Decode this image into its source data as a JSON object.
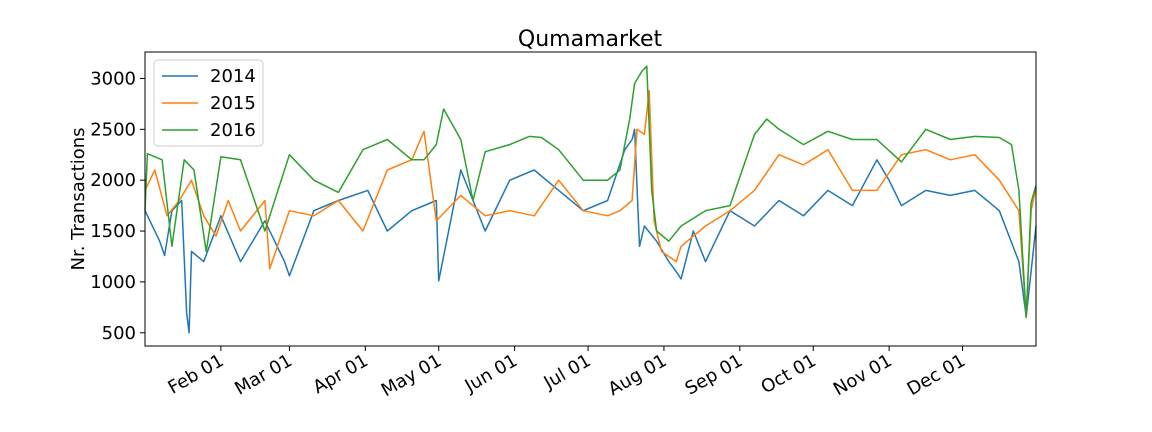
{
  "chart_data": {
    "type": "line",
    "title": "Qumamarket",
    "ylabel": "Nr. Transactions",
    "xlabel": "",
    "x_ticks": [
      {
        "label": "Feb 01",
        "day": 32
      },
      {
        "label": "Mar 01",
        "day": 60
      },
      {
        "label": "Apr 01",
        "day": 91
      },
      {
        "label": "May 01",
        "day": 121
      },
      {
        "label": "Jun 01",
        "day": 152
      },
      {
        "label": "Jul 01",
        "day": 182
      },
      {
        "label": "Aug 01",
        "day": 213
      },
      {
        "label": "Sep 01",
        "day": 244
      },
      {
        "label": "Oct 01",
        "day": 274
      },
      {
        "label": "Nov 01",
        "day": 305
      },
      {
        "label": "Dec 01",
        "day": 335
      }
    ],
    "xlim": [
      1,
      365
    ],
    "y_ticks": [
      500,
      1000,
      1500,
      2000,
      2500,
      3000
    ],
    "ylim": [
      370,
      3260
    ],
    "legend": "top-left",
    "series": [
      {
        "name": "2014",
        "color": "#1f77b4",
        "points": [
          [
            1,
            1700
          ],
          [
            7,
            1400
          ],
          [
            9,
            1260
          ],
          [
            12,
            1700
          ],
          [
            16,
            1800
          ],
          [
            18,
            700
          ],
          [
            19,
            500
          ],
          [
            20,
            1300
          ],
          [
            25,
            1200
          ],
          [
            32,
            1650
          ],
          [
            40,
            1200
          ],
          [
            50,
            1600
          ],
          [
            58,
            1200
          ],
          [
            60,
            1060
          ],
          [
            70,
            1700
          ],
          [
            80,
            1800
          ],
          [
            92,
            1900
          ],
          [
            100,
            1500
          ],
          [
            110,
            1700
          ],
          [
            120,
            1800
          ],
          [
            121,
            1010
          ],
          [
            130,
            2100
          ],
          [
            140,
            1500
          ],
          [
            150,
            2000
          ],
          [
            160,
            2100
          ],
          [
            170,
            1900
          ],
          [
            180,
            1700
          ],
          [
            190,
            1800
          ],
          [
            197,
            2300
          ],
          [
            200,
            2400
          ],
          [
            201,
            2500
          ],
          [
            203,
            1350
          ],
          [
            205,
            1550
          ],
          [
            210,
            1400
          ],
          [
            215,
            1200
          ],
          [
            218,
            1100
          ],
          [
            220,
            1030
          ],
          [
            225,
            1500
          ],
          [
            230,
            1200
          ],
          [
            240,
            1700
          ],
          [
            250,
            1550
          ],
          [
            260,
            1800
          ],
          [
            270,
            1650
          ],
          [
            280,
            1900
          ],
          [
            290,
            1750
          ],
          [
            300,
            2200
          ],
          [
            305,
            2000
          ],
          [
            310,
            1750
          ],
          [
            320,
            1900
          ],
          [
            330,
            1850
          ],
          [
            340,
            1900
          ],
          [
            350,
            1700
          ],
          [
            358,
            1200
          ],
          [
            361,
            660
          ],
          [
            365,
            1550
          ]
        ]
      },
      {
        "name": "2015",
        "color": "#ff7f0e",
        "points": [
          [
            1,
            1900
          ],
          [
            5,
            2100
          ],
          [
            10,
            1650
          ],
          [
            15,
            1800
          ],
          [
            20,
            2000
          ],
          [
            25,
            1650
          ],
          [
            30,
            1450
          ],
          [
            35,
            1800
          ],
          [
            40,
            1500
          ],
          [
            50,
            1800
          ],
          [
            52,
            1130
          ],
          [
            60,
            1700
          ],
          [
            70,
            1650
          ],
          [
            80,
            1800
          ],
          [
            90,
            1500
          ],
          [
            100,
            2100
          ],
          [
            110,
            2200
          ],
          [
            115,
            2480
          ],
          [
            120,
            1600
          ],
          [
            130,
            1850
          ],
          [
            140,
            1650
          ],
          [
            150,
            1700
          ],
          [
            160,
            1650
          ],
          [
            170,
            2000
          ],
          [
            180,
            1700
          ],
          [
            190,
            1650
          ],
          [
            195,
            1700
          ],
          [
            200,
            1800
          ],
          [
            202,
            2500
          ],
          [
            205,
            2450
          ],
          [
            207,
            2880
          ],
          [
            209,
            1600
          ],
          [
            212,
            1300
          ],
          [
            218,
            1200
          ],
          [
            220,
            1350
          ],
          [
            230,
            1550
          ],
          [
            240,
            1700
          ],
          [
            250,
            1900
          ],
          [
            260,
            2250
          ],
          [
            270,
            2150
          ],
          [
            280,
            2300
          ],
          [
            290,
            1900
          ],
          [
            300,
            1900
          ],
          [
            310,
            2250
          ],
          [
            320,
            2300
          ],
          [
            330,
            2200
          ],
          [
            340,
            2250
          ],
          [
            350,
            2000
          ],
          [
            358,
            1700
          ],
          [
            361,
            650
          ],
          [
            363,
            1700
          ],
          [
            365,
            1930
          ]
        ]
      },
      {
        "name": "2016",
        "color": "#2ca02c",
        "points": [
          [
            1,
            1700
          ],
          [
            2,
            2260
          ],
          [
            8,
            2200
          ],
          [
            12,
            1350
          ],
          [
            17,
            2200
          ],
          [
            21,
            2100
          ],
          [
            26,
            1300
          ],
          [
            32,
            2230
          ],
          [
            40,
            2200
          ],
          [
            50,
            1500
          ],
          [
            60,
            2250
          ],
          [
            70,
            2000
          ],
          [
            80,
            1880
          ],
          [
            90,
            2300
          ],
          [
            100,
            2400
          ],
          [
            110,
            2200
          ],
          [
            115,
            2200
          ],
          [
            120,
            2350
          ],
          [
            123,
            2700
          ],
          [
            130,
            2400
          ],
          [
            135,
            1800
          ],
          [
            140,
            2280
          ],
          [
            150,
            2350
          ],
          [
            158,
            2430
          ],
          [
            163,
            2420
          ],
          [
            170,
            2300
          ],
          [
            180,
            2000
          ],
          [
            190,
            2000
          ],
          [
            195,
            2100
          ],
          [
            199,
            2600
          ],
          [
            201,
            2950
          ],
          [
            204,
            3070
          ],
          [
            206,
            3120
          ],
          [
            208,
            1900
          ],
          [
            210,
            1500
          ],
          [
            215,
            1400
          ],
          [
            220,
            1550
          ],
          [
            230,
            1700
          ],
          [
            240,
            1750
          ],
          [
            250,
            2450
          ],
          [
            255,
            2600
          ],
          [
            260,
            2500
          ],
          [
            270,
            2350
          ],
          [
            280,
            2480
          ],
          [
            290,
            2400
          ],
          [
            300,
            2400
          ],
          [
            310,
            2180
          ],
          [
            320,
            2500
          ],
          [
            330,
            2400
          ],
          [
            340,
            2430
          ],
          [
            350,
            2420
          ],
          [
            355,
            2350
          ],
          [
            358,
            1900
          ],
          [
            361,
            650
          ],
          [
            363,
            1780
          ],
          [
            365,
            1950
          ]
        ]
      }
    ]
  }
}
